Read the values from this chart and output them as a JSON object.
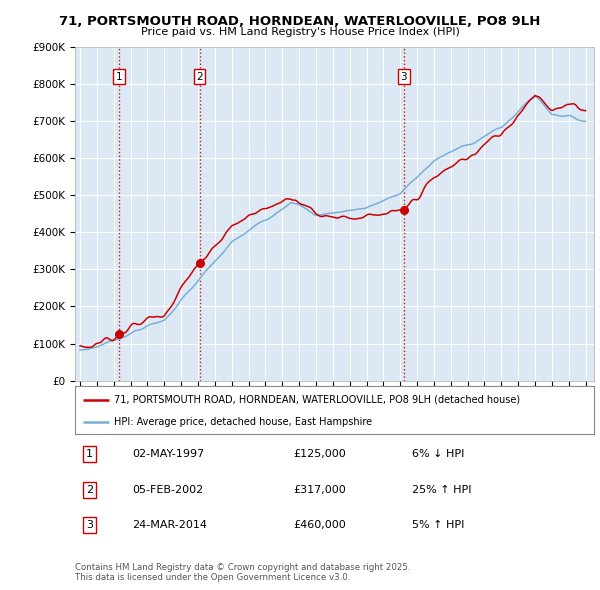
{
  "title": "71, PORTSMOUTH ROAD, HORNDEAN, WATERLOOVILLE, PO8 9LH",
  "subtitle": "Price paid vs. HM Land Registry's House Price Index (HPI)",
  "sale_info": [
    {
      "label": "1",
      "date": "02-MAY-1997",
      "price": "£125,000",
      "diff": "6% ↓ HPI",
      "year": 1997.33
    },
    {
      "label": "2",
      "date": "05-FEB-2002",
      "price": "£317,000",
      "diff": "25% ↑ HPI",
      "year": 2002.09
    },
    {
      "label": "3",
      "date": "24-MAR-2014",
      "price": "£460,000",
      "diff": "5% ↑ HPI",
      "year": 2014.22
    }
  ],
  "sale_prices": [
    125000,
    317000,
    460000
  ],
  "legend_line1": "71, PORTSMOUTH ROAD, HORNDEAN, WATERLOOVILLE, PO8 9LH (detached house)",
  "legend_line2": "HPI: Average price, detached house, East Hampshire",
  "footnote": "Contains HM Land Registry data © Crown copyright and database right 2025.\nThis data is licensed under the Open Government Licence v3.0.",
  "hpi_color": "#7aaed6",
  "price_color": "#cc0000",
  "vline_color": "#cc0000",
  "bg_color": "#dce9f5",
  "ylim": [
    0,
    900000
  ],
  "yticks": [
    0,
    100000,
    200000,
    300000,
    400000,
    500000,
    600000,
    700000,
    800000,
    900000
  ],
  "start_year": 1995,
  "end_year": 2025
}
